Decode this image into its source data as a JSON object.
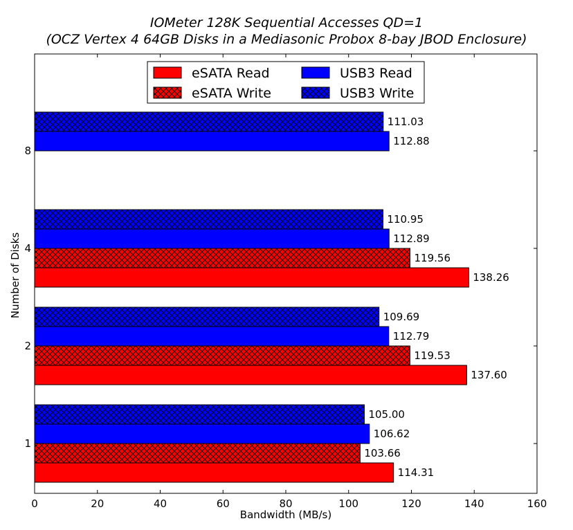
{
  "chart_data": {
    "type": "bar",
    "orientation": "horizontal",
    "title": "IOMeter 128K Sequential Accesses QD=1",
    "subtitle": "(OCZ Vertex 4 64GB Disks in a Mediasonic Probox 8-bay JBOD Enclosure)",
    "xlabel": "Bandwidth (MB/s)",
    "ylabel": "Number of Disks",
    "xlim": [
      0,
      160
    ],
    "x_ticks": [
      "0",
      "20",
      "40",
      "60",
      "80",
      "100",
      "120",
      "140",
      "160"
    ],
    "categories": [
      "1",
      "2",
      "4",
      "8"
    ],
    "legend_position": "top-center",
    "series": [
      {
        "name": "eSATA Read",
        "color": "#ff0000",
        "hatch": false,
        "values": [
          114.31,
          137.6,
          138.26,
          null
        ],
        "labels": [
          "114.31",
          "137.60",
          "138.26",
          null
        ]
      },
      {
        "name": "eSATA Write",
        "color": "#ff0000",
        "hatch": true,
        "values": [
          103.66,
          119.53,
          119.56,
          null
        ],
        "labels": [
          "103.66",
          "119.53",
          "119.56",
          null
        ]
      },
      {
        "name": "USB3 Read",
        "color": "#0000ff",
        "hatch": false,
        "values": [
          106.62,
          112.79,
          112.89,
          112.88
        ],
        "labels": [
          "106.62",
          "112.79",
          "112.89",
          "112.88"
        ]
      },
      {
        "name": "USB3 Write",
        "color": "#0000ff",
        "hatch": true,
        "values": [
          105.0,
          109.69,
          110.95,
          111.03
        ],
        "labels": [
          "105.00",
          "109.69",
          "110.95",
          "111.03"
        ]
      }
    ]
  }
}
